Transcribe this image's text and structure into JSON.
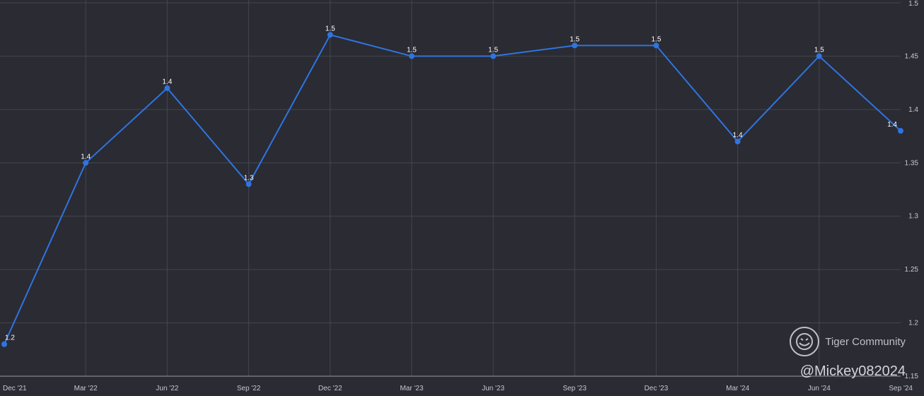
{
  "chart_data": {
    "type": "line",
    "categories": [
      "Dec '21",
      "Mar '22",
      "Jun '22",
      "Sep '22",
      "Dec '22",
      "Mar '23",
      "Jun '23",
      "Sep '23",
      "Dec '23",
      "Mar '24",
      "Jun '24",
      "Sep '24"
    ],
    "series": [
      {
        "color": "#2f74e0",
        "values": [
          1.18,
          1.35,
          1.42,
          1.33,
          1.47,
          1.45,
          1.45,
          1.46,
          1.46,
          1.37,
          1.45,
          1.38
        ],
        "labels": [
          "1.2",
          "1.4",
          "1.4",
          "1.3",
          "1.5",
          "1.5",
          "1.5",
          "1.5",
          "1.5",
          "1.4",
          "1.5",
          "1.4"
        ]
      }
    ],
    "ylim": [
      1.15,
      1.5
    ],
    "y_ticks": [
      "1.15",
      "1.2",
      "1.25",
      "1.3",
      "1.35",
      "1.4",
      "1.45",
      "1.5"
    ],
    "y_axis_side": "right",
    "grid": true
  },
  "watermark": {
    "brand": "Tiger Community",
    "handle": "@Mickey082024",
    "logo_icon": "tiger-logo-icon"
  }
}
